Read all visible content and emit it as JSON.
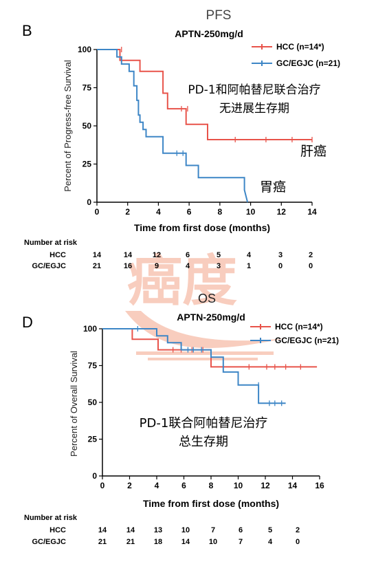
{
  "panel_b": {
    "letter": "B",
    "header": "PFS",
    "annotation": "PD-1和阿帕替尼联合治疗",
    "annotation2": "无进展生存期",
    "label_hcc": "肝癌",
    "label_gc": "胃癌",
    "risk_title": "Number at risk",
    "risk_rows": [
      {
        "label": "HCC",
        "values": [
          "14",
          "14",
          "12",
          "6",
          "5",
          "4",
          "3",
          "2"
        ]
      },
      {
        "label": "GC/EGJC",
        "values": [
          "21",
          "16",
          "9",
          "4",
          "3",
          "1",
          "0",
          "0"
        ]
      }
    ]
  },
  "panel_d": {
    "letter": "D",
    "header": "OS",
    "annotation": "PD-1联合阿帕替尼治疗",
    "annotation2": "总生存期",
    "risk_title": "Number at risk",
    "risk_rows": [
      {
        "label": "HCC",
        "values": [
          "14",
          "14",
          "13",
          "10",
          "7",
          "6",
          "5",
          "2"
        ]
      },
      {
        "label": "GC/EGJC",
        "values": [
          "21",
          "21",
          "18",
          "14",
          "10",
          "7",
          "4",
          "0"
        ]
      }
    ]
  },
  "watermark": {
    "text": "癌度"
  },
  "colors": {
    "hcc": "#e8534a",
    "gc": "#3d86c6",
    "watermark": "#f3a58a"
  },
  "chart_data": [
    {
      "type": "line",
      "subtitle": "APTN-250mg/d",
      "xlabel": "Time from first dose (months)",
      "ylabel": "Percent of Progress-free Survival",
      "xlim": [
        0,
        14
      ],
      "ylim": [
        0,
        100
      ],
      "xticks": [
        "0",
        "2",
        "4",
        "6",
        "8",
        "10",
        "12",
        "14"
      ],
      "yticks": [
        "0",
        "25",
        "50",
        "75",
        "100"
      ],
      "legend": "top-right",
      "series": [
        {
          "name": "HCC (n=14*)",
          "color": "#e8534a",
          "x": [
            0,
            1.5,
            1.5,
            2.8,
            2.8,
            4.3,
            4.3,
            4.6,
            4.6,
            5.8,
            5.8,
            7.2,
            7.2,
            14
          ],
          "y": [
            100,
            100,
            92.9,
            92.9,
            85.7,
            85.7,
            71.4,
            71.4,
            61.2,
            61.2,
            51,
            51,
            41,
            41
          ],
          "censor_x": [
            1.6,
            5.5,
            5.9,
            9.0,
            11.0,
            12.7,
            14.0
          ],
          "censor_y": [
            100,
            61.2,
            61.2,
            41,
            41,
            41,
            41
          ]
        },
        {
          "name": "GC/EGJC (n=21)",
          "color": "#3d86c6",
          "x": [
            0,
            1.3,
            1.3,
            1.6,
            1.6,
            2.1,
            2.1,
            2.4,
            2.4,
            2.6,
            2.6,
            2.7,
            2.7,
            2.8,
            2.8,
            3.0,
            3.0,
            3.2,
            3.2,
            4.3,
            4.3,
            5.8,
            5.8,
            6.6,
            6.6,
            9.6,
            9.6,
            9.8
          ],
          "y": [
            100,
            100,
            95.2,
            95.2,
            90.5,
            90.5,
            85.7,
            85.7,
            76.2,
            76.2,
            66.7,
            66.7,
            57.1,
            57.1,
            52.4,
            52.4,
            47.6,
            47.6,
            42.9,
            42.9,
            32.1,
            32.1,
            24.1,
            24.1,
            16.1,
            16.1,
            8.0,
            0
          ],
          "censor_x": [
            5.2,
            5.6
          ],
          "censor_y": [
            32.1,
            32.1
          ]
        }
      ]
    },
    {
      "type": "line",
      "subtitle": "APTN-250mg/d",
      "xlabel": "Time from first dose (months)",
      "ylabel": "Percent of Overall Survival",
      "xlim": [
        0,
        16
      ],
      "ylim": [
        0,
        100
      ],
      "xticks": [
        "0",
        "2",
        "4",
        "6",
        "8",
        "10",
        "12",
        "14",
        "16"
      ],
      "yticks": [
        "0",
        "25",
        "50",
        "75",
        "100"
      ],
      "legend": "top-right",
      "series": [
        {
          "name": "HCC (n=14*)",
          "color": "#e8534a",
          "x": [
            0,
            2.2,
            2.2,
            4.1,
            4.1,
            8.0,
            8.0,
            15.8
          ],
          "y": [
            100,
            100,
            92.9,
            92.9,
            85.7,
            85.7,
            74.1,
            74.1
          ],
          "censor_x": [
            5.2,
            5.8,
            6.6,
            7.4,
            10.8,
            12.1,
            12.7,
            13.5,
            14.6
          ],
          "censor_y": [
            85.7,
            85.7,
            85.7,
            85.7,
            74.1,
            74.1,
            74.1,
            74.1,
            74.1
          ]
        },
        {
          "name": "GC/EGJC (n=21)",
          "color": "#3d86c6",
          "x": [
            0,
            4.0,
            4.0,
            4.8,
            4.8,
            5.8,
            5.8,
            8.0,
            8.0,
            8.9,
            8.9,
            10.0,
            10.0,
            11.5,
            11.5,
            13.5
          ],
          "y": [
            100,
            100,
            95.2,
            95.2,
            90.5,
            90.5,
            85.7,
            85.7,
            80.7,
            80.7,
            70.6,
            70.6,
            61.8,
            61.8,
            49.4,
            49.4
          ],
          "censor_x": [
            2.6,
            6.3,
            6.7,
            7.3,
            11.5,
            12.3,
            12.7,
            13.2
          ],
          "censor_y": [
            100,
            85.7,
            85.7,
            85.7,
            61.8,
            49.4,
            49.4,
            49.4
          ]
        }
      ]
    }
  ]
}
